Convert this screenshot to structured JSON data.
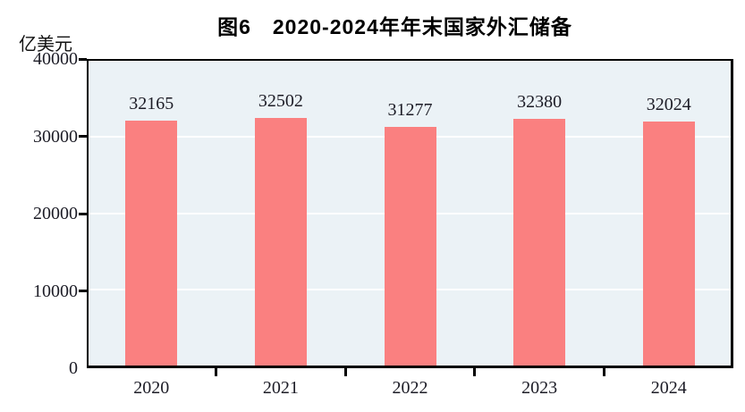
{
  "figure": {
    "title": "图6　2020-2024年年末国家外汇储备",
    "unit_label": "亿美元"
  },
  "chart_data": {
    "type": "bar",
    "title": "图6　2020-2024年年末国家外汇储备",
    "categories": [
      "2020",
      "2021",
      "2022",
      "2023",
      "2024"
    ],
    "values": [
      32165,
      32502,
      31277,
      32380,
      32024
    ],
    "data_labels": [
      "32165",
      "32502",
      "31277",
      "32380",
      "32024"
    ],
    "xlabel": "",
    "ylabel": "亿美元",
    "ylim": [
      0,
      40000
    ],
    "yticks": [
      0,
      10000,
      20000,
      30000,
      40000
    ],
    "grid": "horizontal-major",
    "legend": "none",
    "colors": {
      "bar": "#FA8080",
      "plot_background": "#EBF2F6",
      "gridline": "#FFFFFF",
      "axis_frame": "#000000",
      "text": "#1C1C26",
      "page_background": "#FFFFFF"
    }
  }
}
